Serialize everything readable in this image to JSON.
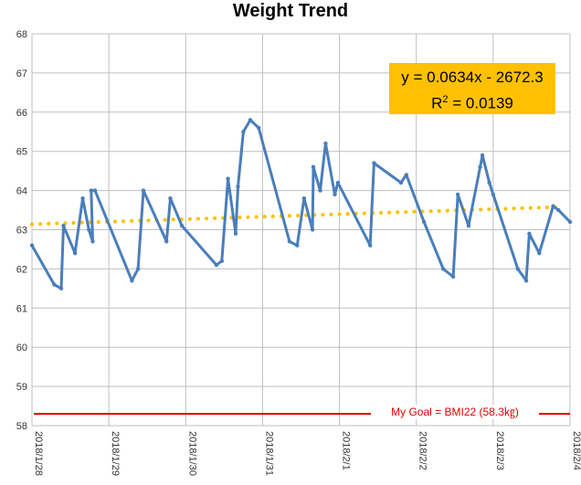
{
  "chart_data": {
    "type": "line",
    "title": "Weight Trend",
    "ylim": [
      58,
      68
    ],
    "yticks": [
      "58",
      "59",
      "60",
      "61",
      "62",
      "63",
      "64",
      "65",
      "66",
      "67",
      "68"
    ],
    "xticks": [
      "2018/1/28",
      "2018/1/29",
      "2018/1/30",
      "2018/1/31",
      "2018/2/1",
      "2018/2/2",
      "2018/2/3",
      "2018/2/4"
    ],
    "grid": true,
    "series": [
      {
        "values": [
          [
            0.0,
            62.6
          ],
          [
            0.29,
            61.6
          ],
          [
            0.38,
            61.5
          ],
          [
            0.41,
            63.1
          ],
          [
            0.56,
            62.4
          ],
          [
            0.66,
            63.8
          ],
          [
            0.74,
            63.0
          ],
          [
            0.79,
            62.7
          ],
          [
            0.77,
            64.0
          ],
          [
            0.82,
            64.0
          ],
          [
            1.3,
            61.7
          ],
          [
            1.38,
            62.0
          ],
          [
            1.45,
            64.0
          ],
          [
            1.75,
            62.7
          ],
          [
            1.8,
            63.8
          ],
          [
            1.95,
            63.1
          ],
          [
            2.4,
            62.1
          ],
          [
            2.47,
            62.2
          ],
          [
            2.55,
            64.3
          ],
          [
            2.65,
            62.9
          ],
          [
            2.68,
            64.1
          ],
          [
            2.75,
            65.5
          ],
          [
            2.84,
            65.8
          ],
          [
            2.95,
            65.6
          ],
          [
            3.35,
            62.7
          ],
          [
            3.45,
            62.6
          ],
          [
            3.54,
            63.8
          ],
          [
            3.65,
            63.0
          ],
          [
            3.66,
            64.6
          ],
          [
            3.75,
            64.0
          ],
          [
            3.82,
            65.2
          ],
          [
            3.94,
            63.9
          ],
          [
            3.98,
            64.2
          ],
          [
            4.4,
            62.6
          ],
          [
            4.45,
            64.7
          ],
          [
            4.8,
            64.2
          ],
          [
            4.87,
            64.4
          ],
          [
            5.1,
            63.2
          ],
          [
            5.35,
            62.0
          ],
          [
            5.48,
            61.8
          ],
          [
            5.54,
            63.9
          ],
          [
            5.68,
            63.1
          ],
          [
            5.83,
            64.6
          ],
          [
            5.86,
            64.9
          ],
          [
            5.95,
            64.2
          ],
          [
            6.0,
            63.9
          ],
          [
            6.32,
            62.0
          ],
          [
            6.43,
            61.7
          ],
          [
            6.47,
            62.9
          ],
          [
            6.6,
            62.4
          ],
          [
            6.78,
            63.6
          ],
          [
            6.85,
            63.5
          ],
          [
            7.0,
            63.2
          ]
        ],
        "color": "#4a7ebb"
      }
    ],
    "trendline": {
      "start": [
        0.0,
        63.14
      ],
      "end": [
        6.85,
        63.58
      ],
      "color": "#ffc000",
      "equation": "y = 0.0634x - 2672.3",
      "r2_prefix": "R",
      "r2_sup": "2",
      "r2_value": " = 0.0139"
    },
    "goal_line": {
      "value": 58.3,
      "color": "#e00000",
      "label": "My Goal = BMI22 (58.3㎏)"
    }
  }
}
